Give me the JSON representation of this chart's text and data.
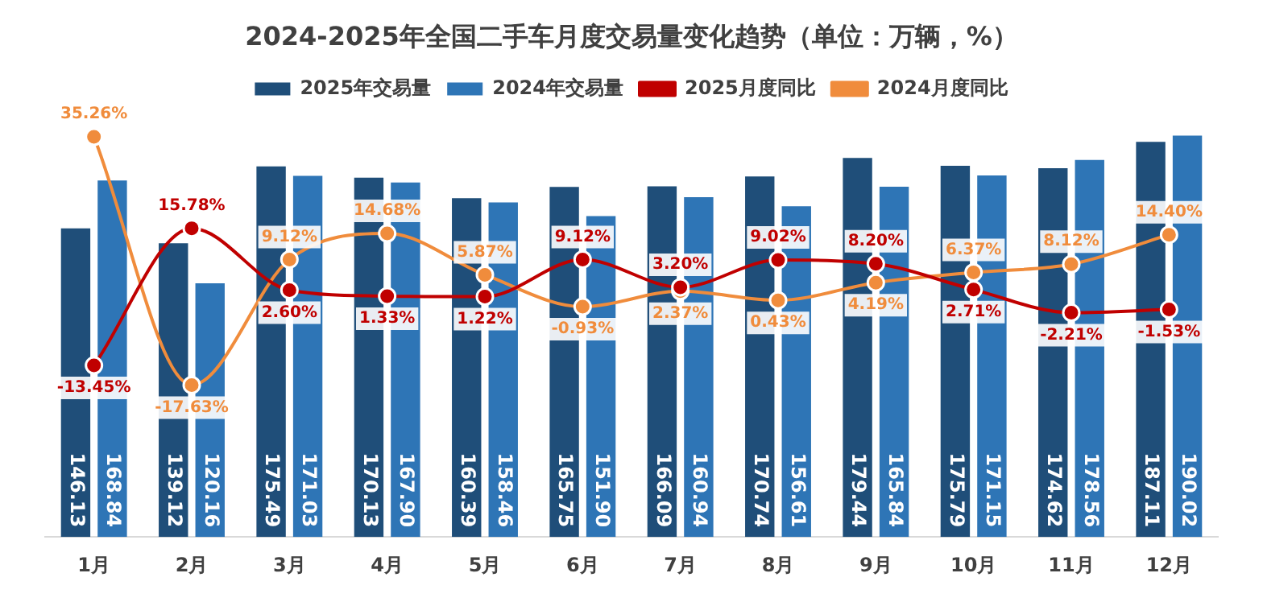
{
  "chart_data": {
    "type": "bar",
    "title": "2024-2025年全国二手车月度交易量变化趋势（单位：万辆，%）",
    "categories": [
      "1月",
      "2月",
      "3月",
      "4月",
      "5月",
      "6月",
      "7月",
      "8月",
      "9月",
      "10月",
      "11月",
      "12月"
    ],
    "series": [
      {
        "name": "2025年交易量",
        "color": "#1f4e79",
        "values": [
          146.13,
          139.12,
          175.49,
          170.13,
          160.39,
          165.75,
          166.09,
          170.74,
          179.44,
          175.79,
          174.62,
          187.11
        ],
        "value_labels": [
          "146.13",
          "139.12",
          "175.49",
          "170.13",
          "160.39",
          "165.75",
          "166.09",
          "170.74",
          "179.44",
          "175.79",
          "174.62",
          "187.11"
        ]
      },
      {
        "name": "2024年交易量",
        "color": "#2e75b6",
        "values": [
          168.84,
          120.16,
          171.03,
          167.9,
          158.46,
          151.9,
          160.94,
          156.61,
          165.84,
          171.15,
          178.56,
          190.02
        ],
        "value_labels": [
          "168.84",
          "120.16",
          "171.03",
          "167.90",
          "158.46",
          "151.90",
          "160.94",
          "156.61",
          "165.84",
          "171.15",
          "178.56",
          "190.02"
        ]
      },
      {
        "name": "2025月度同比",
        "type": "line",
        "axis": "y2",
        "color": "#c00000",
        "values": [
          -13.45,
          15.78,
          2.6,
          1.33,
          1.22,
          9.12,
          3.2,
          9.02,
          8.2,
          2.71,
          -2.21,
          -1.53
        ],
        "value_labels": [
          "-13.45%",
          "15.78%",
          "2.60%",
          "1.33%",
          "1.22%",
          "9.12%",
          "3.20%",
          "9.02%",
          "8.20%",
          "2.71%",
          "-2.21%",
          "-1.53%"
        ]
      },
      {
        "name": "2024月度同比",
        "type": "line",
        "axis": "y2",
        "color": "#f08c3c",
        "values": [
          35.26,
          -17.63,
          9.12,
          14.68,
          5.87,
          -0.93,
          2.37,
          0.43,
          4.19,
          6.37,
          8.12,
          14.4
        ],
        "value_labels": [
          "35.26%",
          "-17.63%",
          "9.12%",
          "14.68%",
          "5.87%",
          "-0.93%",
          "2.37%",
          "0.43%",
          "4.19%",
          "6.37%",
          "8.12%",
          "14.40%"
        ]
      }
    ],
    "tick_labels": "x",
    "legend": "top",
    "marker": "circle"
  }
}
